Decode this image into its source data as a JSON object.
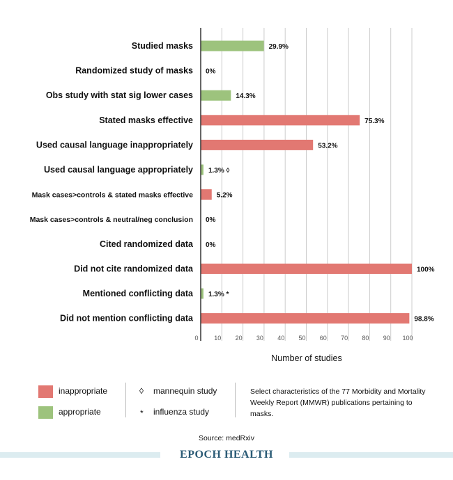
{
  "chart_data": {
    "type": "bar",
    "orientation": "horizontal",
    "categories": [
      "Studied masks",
      "Randomized study of masks",
      "Obs study with stat sig lower cases",
      "Stated masks effective",
      "Used causal language inappropriately",
      "Used causal language appropriately",
      "Mask cases>controls & stated masks effective",
      "Mask cases>controls & neutral/neg conclusion",
      "Cited randomized data",
      "Did not cite randomized data",
      "Mentioned conflicting data",
      "Did not mention conflicting data"
    ],
    "values": [
      29.9,
      0,
      14.3,
      75.3,
      53.2,
      1.3,
      5.2,
      0,
      0,
      100,
      1.3,
      98.8
    ],
    "value_labels": [
      "29.9%",
      "0%",
      "14.3%",
      "75.3%",
      "53.2%",
      "1.3%",
      "5.2%",
      "0%",
      "0%",
      "100%",
      "1.3%",
      "98.8%"
    ],
    "annotations": [
      "",
      "",
      "",
      "",
      "",
      "◊",
      "",
      "",
      "",
      "",
      "*",
      ""
    ],
    "bar_classes": [
      "appropriate",
      "appropriate",
      "appropriate",
      "inappropriate",
      "inappropriate",
      "appropriate",
      "inappropriate",
      "appropriate",
      "appropriate",
      "inappropriate",
      "appropriate",
      "inappropriate"
    ],
    "xticks": [
      "0",
      "10",
      "20",
      "30",
      "40",
      "50",
      "60",
      "70",
      "80",
      "90",
      "100"
    ],
    "xlim": [
      0,
      100
    ],
    "xlabel": "Number of studies",
    "grid": true
  },
  "colors": {
    "inappropriate": "#e27872",
    "appropriate": "#9dc37d",
    "grid": "#cccccc",
    "axis": "#333333"
  },
  "legend": {
    "inappropriate_label": "inappropriate",
    "appropriate_label": "appropriate",
    "mannequin_symbol": "◊",
    "mannequin_label": "mannequin study",
    "influenza_symbol": "*",
    "influenza_label": "influenza study"
  },
  "note": "Select characteristics of the 77 Morbidity and Mortality Weekly Report (MMWR) publications pertaining to masks.",
  "source": "Source: medRxiv",
  "brand": "EPOCH HEALTH"
}
